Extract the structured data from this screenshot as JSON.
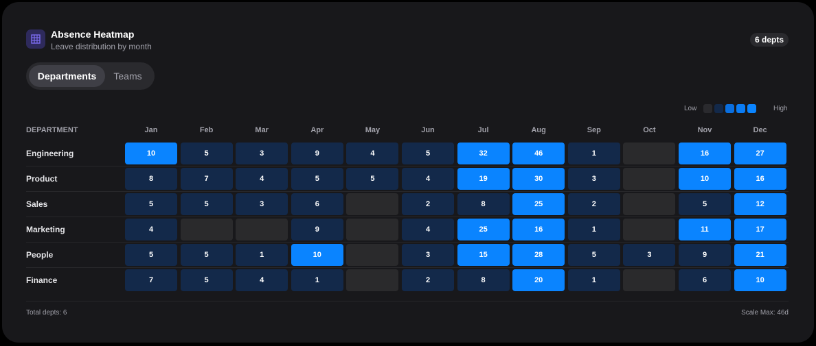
{
  "header": {
    "title": "Absence Heatmap",
    "subtitle": "Leave distribution by month",
    "badge": "6 depts"
  },
  "tabs": [
    "Departments",
    "Teams"
  ],
  "legend": {
    "low": "Low",
    "high": "High"
  },
  "table": {
    "columns": [
      "DEPARTMENT",
      "Jan",
      "Feb",
      "Mar",
      "Apr",
      "May",
      "Jun",
      "Jul",
      "Aug",
      "Sep",
      "Oct",
      "Nov",
      "Dec"
    ],
    "rows": [
      {
        "name": "Engineering",
        "values": [
          10,
          5,
          3,
          9,
          4,
          5,
          32,
          46,
          1,
          null,
          16,
          27
        ]
      },
      {
        "name": "Product",
        "values": [
          8,
          7,
          4,
          5,
          5,
          4,
          19,
          30,
          3,
          null,
          10,
          16
        ]
      },
      {
        "name": "Sales",
        "values": [
          5,
          5,
          3,
          6,
          null,
          2,
          8,
          25,
          2,
          null,
          5,
          12
        ]
      },
      {
        "name": "Marketing",
        "values": [
          4,
          null,
          null,
          9,
          null,
          4,
          25,
          16,
          1,
          null,
          11,
          17
        ]
      },
      {
        "name": "People",
        "values": [
          5,
          5,
          1,
          10,
          null,
          3,
          15,
          28,
          5,
          3,
          9,
          21
        ]
      },
      {
        "name": "Finance",
        "values": [
          7,
          5,
          4,
          1,
          null,
          2,
          8,
          20,
          1,
          null,
          6,
          10
        ]
      }
    ]
  },
  "footer": {
    "left": "Total depts: 6",
    "right": "Scale Max: 46d"
  }
}
